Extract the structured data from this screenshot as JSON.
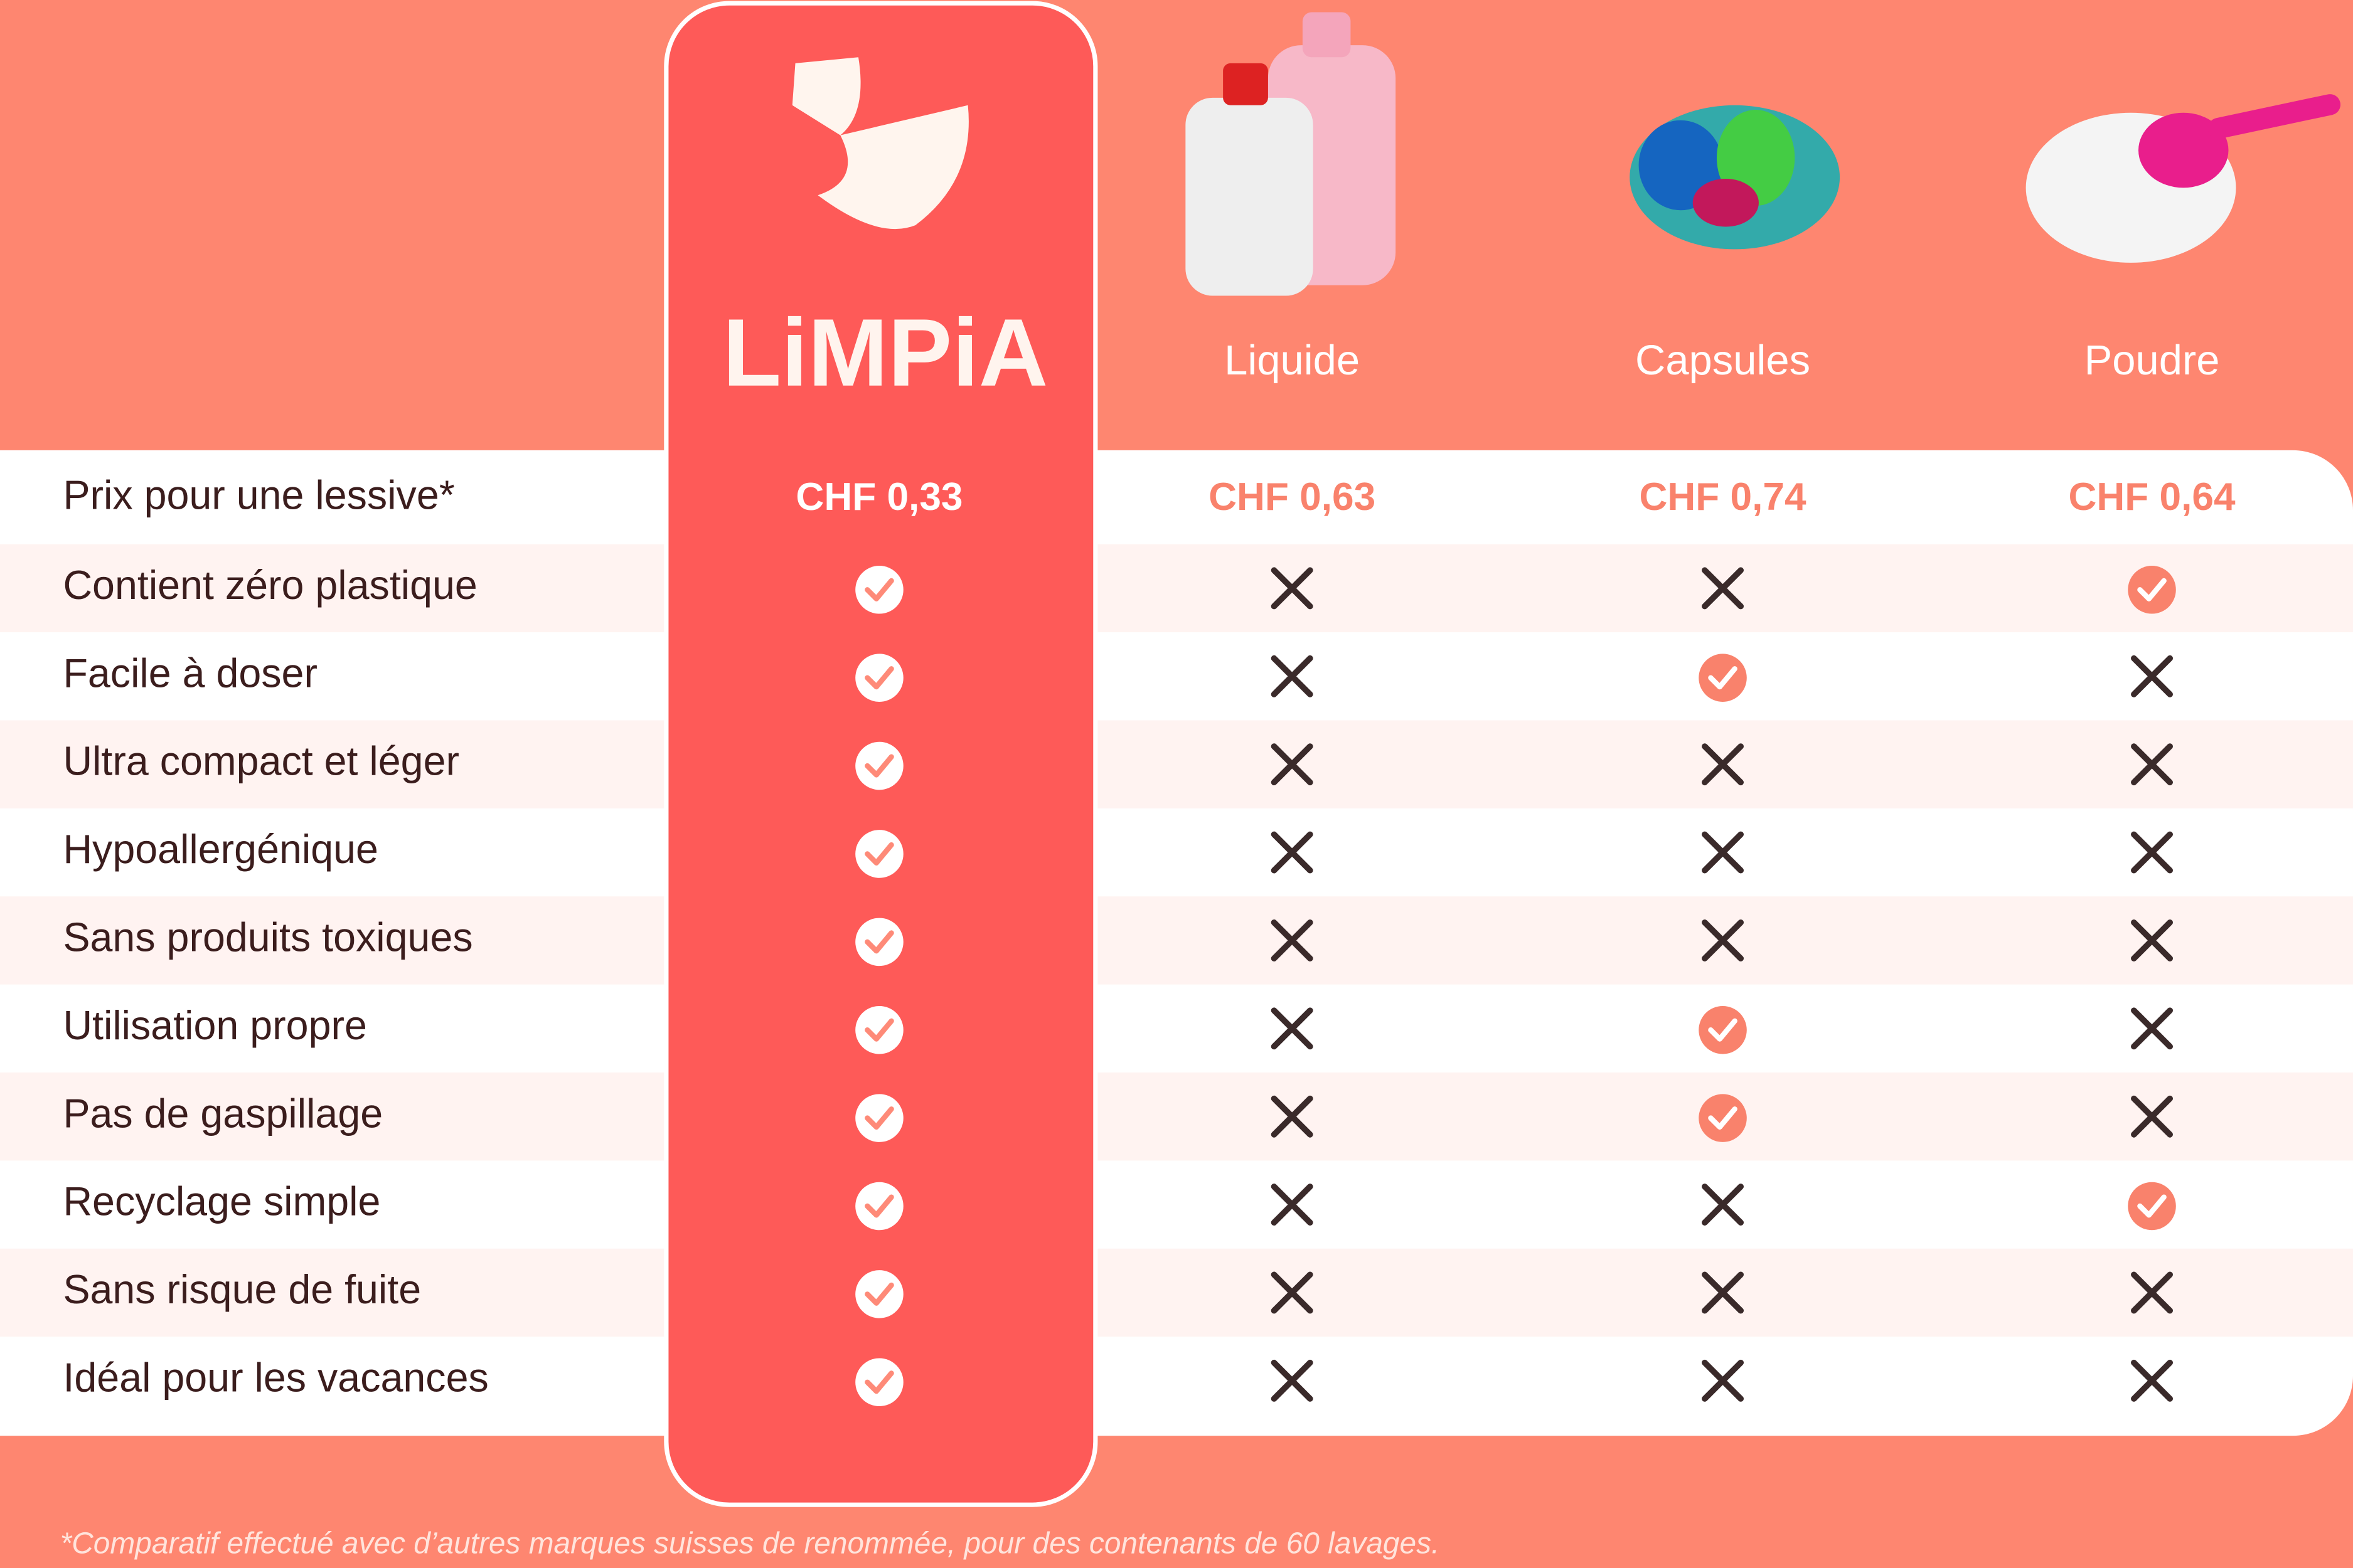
{
  "header": {
    "columns": [
      "LiMPiA",
      "Liquide",
      "Capsules",
      "Poudre"
    ]
  },
  "table": {
    "price_row": {
      "label": "Prix pour une lessive*",
      "values": [
        "CHF 0,33",
        "CHF 0,63",
        "CHF 0,74",
        "CHF 0,64"
      ]
    },
    "rows": [
      {
        "label": "Contient zéro plastique",
        "values": [
          true,
          false,
          false,
          true
        ]
      },
      {
        "label": "Facile à doser",
        "values": [
          true,
          false,
          true,
          false
        ]
      },
      {
        "label": "Ultra compact et léger",
        "values": [
          true,
          false,
          false,
          false
        ]
      },
      {
        "label": "Hypoallergénique",
        "values": [
          true,
          false,
          false,
          false
        ]
      },
      {
        "label": "Sans produits toxiques",
        "values": [
          true,
          false,
          false,
          false
        ]
      },
      {
        "label": "Utilisation propre",
        "values": [
          true,
          false,
          true,
          false
        ]
      },
      {
        "label": "Pas de gaspillage",
        "values": [
          true,
          false,
          true,
          false
        ]
      },
      {
        "label": "Recyclage simple",
        "values": [
          true,
          false,
          false,
          true
        ]
      },
      {
        "label": "Sans risque de fuite",
        "values": [
          true,
          false,
          false,
          false
        ]
      },
      {
        "label": "Idéal pour les vacances",
        "values": [
          true,
          false,
          false,
          false
        ]
      }
    ]
  },
  "footnote": "*Comparatif effectué avec d’autres marques suisses de renommée, pour des contenants de 60 lavages."
}
